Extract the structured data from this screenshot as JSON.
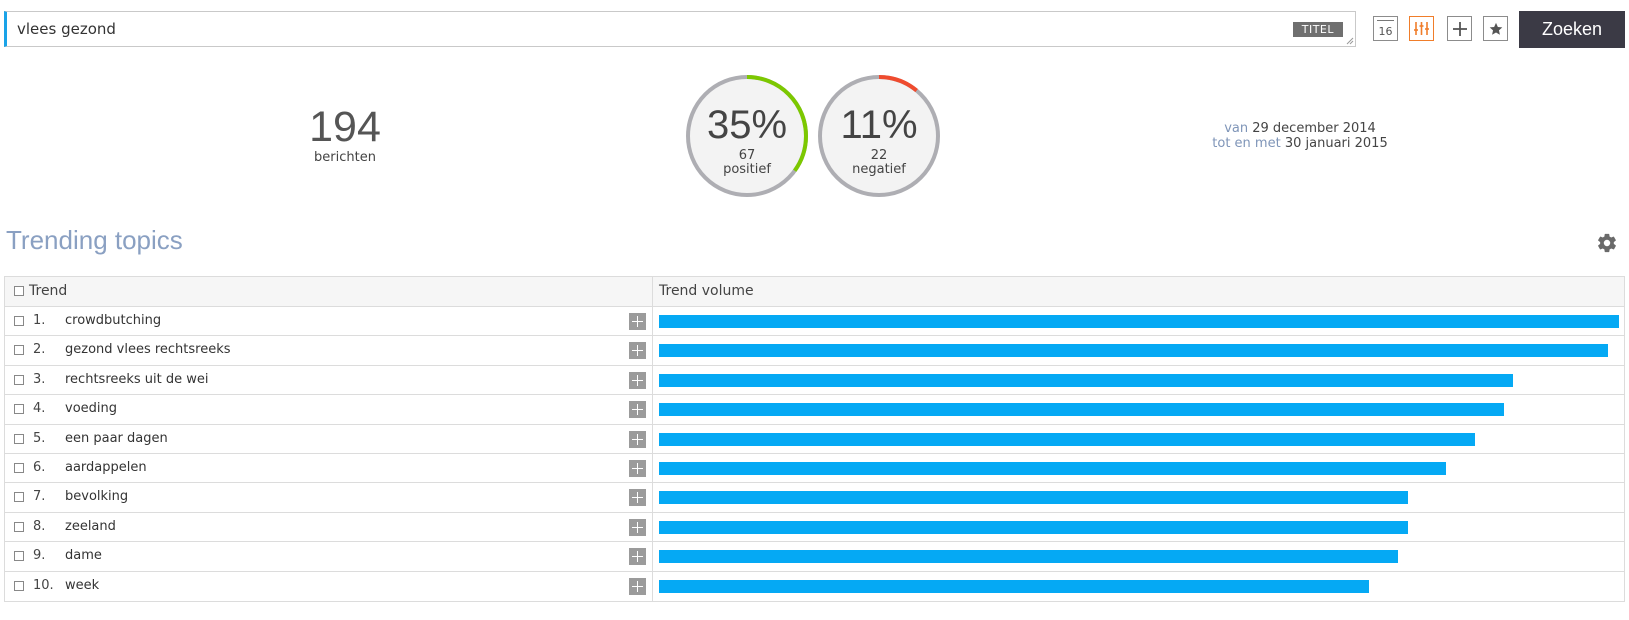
{
  "search": {
    "value": "vlees gezond",
    "tag": "TITEL",
    "submit_label": "Zoeken",
    "calendar_day": "16"
  },
  "stats": {
    "count": "194",
    "count_label": "berichten",
    "positive": {
      "percent": "35%",
      "count": "67",
      "label": "positief",
      "fraction": 0.35,
      "color": "#7cc800"
    },
    "negative": {
      "percent": "11%",
      "count": "22",
      "label": "negatief",
      "fraction": 0.11,
      "color": "#ef4b2e"
    },
    "date_from_key": "van",
    "date_from": "29 december 2014",
    "date_to_key": "tot en met",
    "date_to": "30 januari 2015"
  },
  "section": {
    "title": "Trending topics"
  },
  "table": {
    "col_trend": "Trend",
    "col_volume": "Trend volume",
    "rows": [
      {
        "num": "1.",
        "name": "crowdbutching",
        "volume": 1.0
      },
      {
        "num": "2.",
        "name": "gezond vlees rechtsreeks",
        "volume": 0.989
      },
      {
        "num": "3.",
        "name": "rechtsreeks uit de wei",
        "volume": 0.89
      },
      {
        "num": "4.",
        "name": "voeding",
        "volume": 0.88
      },
      {
        "num": "5.",
        "name": "een paar dagen",
        "volume": 0.85
      },
      {
        "num": "6.",
        "name": "aardappelen",
        "volume": 0.82
      },
      {
        "num": "7.",
        "name": "bevolking",
        "volume": 0.78
      },
      {
        "num": "8.",
        "name": "zeeland",
        "volume": 0.78
      },
      {
        "num": "9.",
        "name": "dame",
        "volume": 0.77
      },
      {
        "num": "10.",
        "name": "week",
        "volume": 0.74
      }
    ]
  },
  "icons": {
    "calendar": "calendar-icon",
    "filter": "sliders-icon",
    "add": "plus-icon",
    "favorite": "star-icon",
    "settings": "gear-icon"
  },
  "colors": {
    "accent": "#1aa3e8",
    "bar": "#05a9f4",
    "active_tool": "#f07d2a",
    "title": "#8aa0c2",
    "search_button": "#3b3a45"
  }
}
